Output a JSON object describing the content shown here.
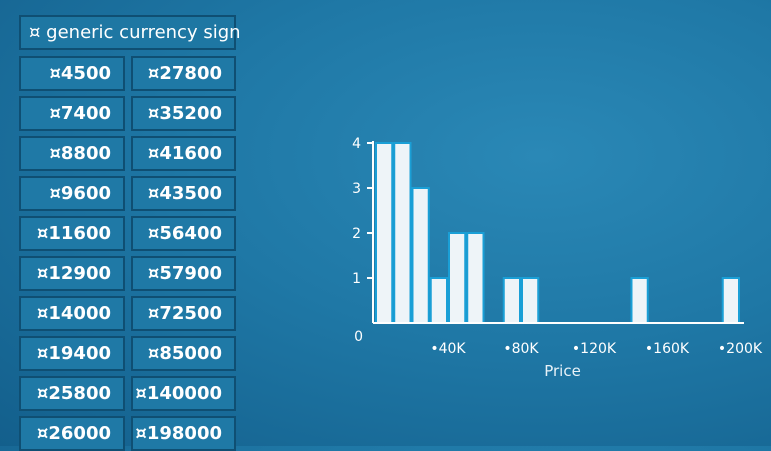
{
  "table": {
    "header": "¤ generic currency sign",
    "col1": [
      "¤4500",
      "¤7400",
      "¤8800",
      "¤9600",
      "¤11600",
      "¤12900",
      "¤14000",
      "¤19400",
      "¤25800",
      "¤26000"
    ],
    "col2": [
      "¤27800",
      "¤35200",
      "¤41600",
      "¤43500",
      "¤56400",
      "¤57900",
      "¤72500",
      "¤85000",
      "¤140000",
      "¤198000"
    ]
  },
  "chart_data": {
    "type": "bar",
    "title": "",
    "xlabel": "Price",
    "ylabel": "",
    "xlim": [
      0,
      200000
    ],
    "ylim": [
      0,
      4
    ],
    "bin_width": 10000,
    "bins": [
      {
        "start": 0,
        "end": 10000,
        "count": 4
      },
      {
        "start": 10000,
        "end": 20000,
        "count": 4
      },
      {
        "start": 20000,
        "end": 30000,
        "count": 3
      },
      {
        "start": 30000,
        "end": 40000,
        "count": 1
      },
      {
        "start": 40000,
        "end": 50000,
        "count": 2
      },
      {
        "start": 50000,
        "end": 60000,
        "count": 2
      },
      {
        "start": 60000,
        "end": 70000,
        "count": 0
      },
      {
        "start": 70000,
        "end": 80000,
        "count": 1
      },
      {
        "start": 80000,
        "end": 90000,
        "count": 1
      },
      {
        "start": 90000,
        "end": 100000,
        "count": 0
      },
      {
        "start": 100000,
        "end": 110000,
        "count": 0
      },
      {
        "start": 110000,
        "end": 120000,
        "count": 0
      },
      {
        "start": 120000,
        "end": 130000,
        "count": 0
      },
      {
        "start": 130000,
        "end": 140000,
        "count": 0
      },
      {
        "start": 140000,
        "end": 150000,
        "count": 1
      },
      {
        "start": 150000,
        "end": 160000,
        "count": 0
      },
      {
        "start": 160000,
        "end": 170000,
        "count": 0
      },
      {
        "start": 170000,
        "end": 180000,
        "count": 0
      },
      {
        "start": 180000,
        "end": 190000,
        "count": 0
      },
      {
        "start": 190000,
        "end": 200000,
        "count": 1
      }
    ],
    "x_ticks": [
      {
        "value": 40000,
        "label": "•40K"
      },
      {
        "value": 80000,
        "label": "•80K"
      },
      {
        "value": 120000,
        "label": "•120K"
      },
      {
        "value": 160000,
        "label": "•160K"
      },
      {
        "value": 200000,
        "label": "•200K"
      }
    ],
    "y_ticks": [
      {
        "value": 0,
        "label": "0"
      },
      {
        "value": 1,
        "label": "1"
      },
      {
        "value": 2,
        "label": "2"
      },
      {
        "value": 3,
        "label": "3"
      },
      {
        "value": 4,
        "label": "4"
      }
    ],
    "colors": {
      "bar_fill": "#eef4f8",
      "bar_stroke": "#1a9fd6",
      "axis": "#ffffff"
    }
  }
}
